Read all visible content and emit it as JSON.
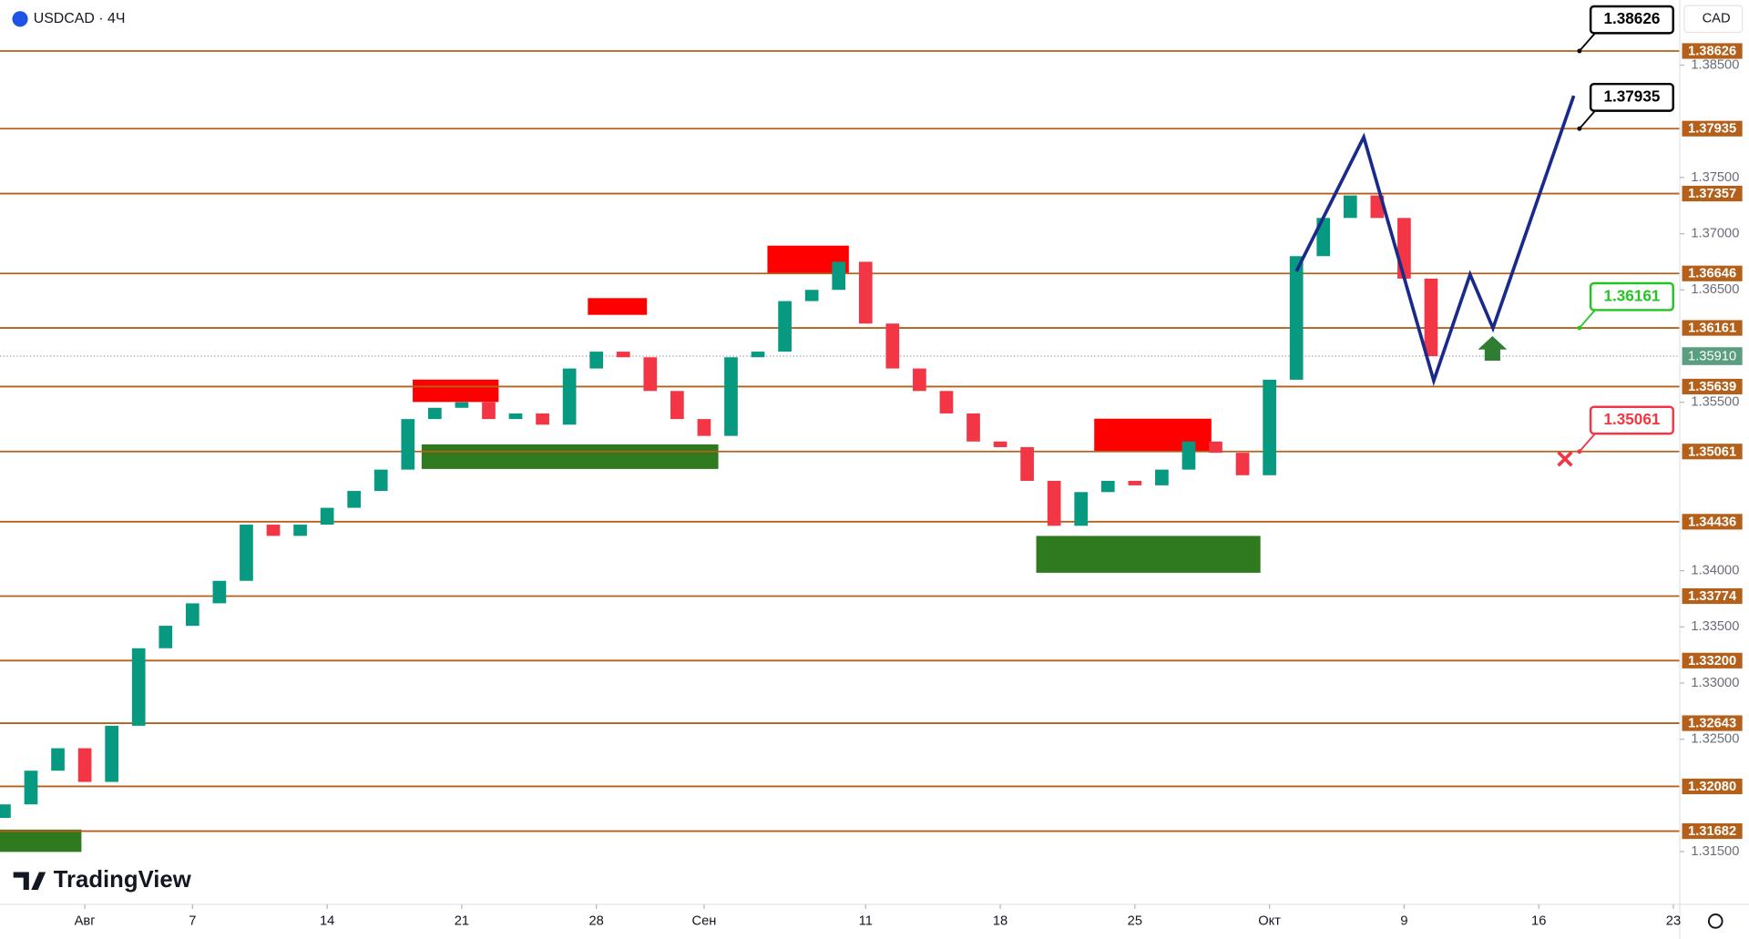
{
  "header": {
    "symbol": "USDCAD · 4Ч",
    "currency": "CAD",
    "brand": "TradingView"
  },
  "chart_data": {
    "type": "candlestick",
    "x": [
      -3,
      -2,
      -1,
      0,
      1,
      2,
      3,
      4,
      5,
      6,
      7,
      8,
      9,
      10,
      11,
      12,
      13,
      14,
      15,
      16,
      17,
      18,
      19,
      20,
      21,
      22,
      23,
      24,
      25,
      26,
      27,
      28,
      29,
      30,
      31,
      32,
      33,
      34,
      35,
      36,
      37,
      38,
      39,
      40,
      41,
      42,
      43,
      44,
      45,
      46,
      47,
      48,
      49,
      50
    ],
    "open": [
      1.318,
      1.3192,
      1.3222,
      1.3242,
      1.3212,
      1.3262,
      1.3331,
      1.3351,
      1.3371,
      1.3391,
      1.3441,
      1.3431,
      1.3441,
      1.3456,
      1.3471,
      1.349,
      1.3535,
      1.3545,
      1.355,
      1.3535,
      1.354,
      1.353,
      1.358,
      1.3595,
      1.359,
      1.356,
      1.3535,
      1.352,
      1.359,
      1.3595,
      1.364,
      1.365,
      1.3675,
      1.362,
      1.358,
      1.356,
      1.354,
      1.3515,
      1.351,
      1.348,
      1.344,
      1.347,
      1.348,
      1.3476,
      1.349,
      1.3515,
      1.3505,
      1.3485,
      1.357,
      1.368,
      1.3714,
      1.3734,
      1.3714,
      1.366
    ],
    "close": [
      1.3192,
      1.3222,
      1.3242,
      1.3212,
      1.3262,
      1.3331,
      1.3351,
      1.3371,
      1.3391,
      1.3441,
      1.3431,
      1.3441,
      1.3456,
      1.3471,
      1.349,
      1.3535,
      1.3545,
      1.355,
      1.3535,
      1.354,
      1.353,
      1.358,
      1.3595,
      1.359,
      1.356,
      1.3535,
      1.352,
      1.359,
      1.3595,
      1.364,
      1.365,
      1.3675,
      1.362,
      1.358,
      1.356,
      1.354,
      1.3515,
      1.351,
      1.348,
      1.344,
      1.347,
      1.348,
      1.3476,
      1.349,
      1.3515,
      1.3505,
      1.3485,
      1.357,
      1.368,
      1.3714,
      1.3734,
      1.3714,
      1.366,
      1.3591
    ],
    "up_color": "#089981",
    "down_color": "#f23645",
    "xlim": [
      -3.15,
      59.24
    ],
    "xticks": [
      {
        "value": 0,
        "label": "Авг"
      },
      {
        "value": 4,
        "label": "7"
      },
      {
        "value": 9,
        "label": "14"
      },
      {
        "value": 14,
        "label": "21"
      },
      {
        "value": 19,
        "label": "28"
      },
      {
        "value": 23,
        "label": "Сен"
      },
      {
        "value": 29,
        "label": "11"
      },
      {
        "value": 34,
        "label": "18"
      },
      {
        "value": 39,
        "label": "25"
      },
      {
        "value": 44,
        "label": "Окт"
      },
      {
        "value": 49,
        "label": "9"
      },
      {
        "value": 54,
        "label": "16"
      },
      {
        "value": 59,
        "label": "23"
      }
    ],
    "ylim": [
      1.3103,
      1.3908
    ],
    "yticks": [
      {
        "value": 1.385,
        "label": "1.38500"
      },
      {
        "value": 1.375,
        "label": "1.37500"
      },
      {
        "value": 1.37,
        "label": "1.37000"
      },
      {
        "value": 1.365,
        "label": "1.36500"
      },
      {
        "value": 1.355,
        "label": "1.35500"
      },
      {
        "value": 1.34,
        "label": "1.34000"
      },
      {
        "value": 1.335,
        "label": "1.33500"
      },
      {
        "value": 1.33,
        "label": "1.33000"
      },
      {
        "value": 1.325,
        "label": "1.32500"
      },
      {
        "value": 1.315,
        "label": "1.31500"
      }
    ],
    "level_color": "#b4601a",
    "levels": [
      1.38626,
      1.37935,
      1.37357,
      1.36646,
      1.36161,
      1.35639,
      1.35061,
      1.34436,
      1.33774,
      {
        "value": 1.332,
        "label": "1.33200"
      },
      1.32643,
      {
        "value": 1.3208,
        "label": "1.32080"
      },
      1.31682
    ],
    "last_price": {
      "value": 1.3591,
      "label": "1.35910"
    },
    "callouts": [
      {
        "value": 1.38626,
        "color": "#000000"
      },
      {
        "value": 1.37935,
        "color": "#000000"
      },
      {
        "value": 1.36161,
        "color": "#22c522"
      },
      {
        "value": 1.35061,
        "color": "#f23645"
      }
    ],
    "projection": {
      "color": "#1a2a8a",
      "x": [
        45,
        47.5,
        50.1,
        51.45,
        52.3,
        55.3
      ],
      "values": [
        1.36666,
        1.3786,
        1.35691,
        1.36637,
        1.36159,
        1.38228
      ]
    }
  }
}
